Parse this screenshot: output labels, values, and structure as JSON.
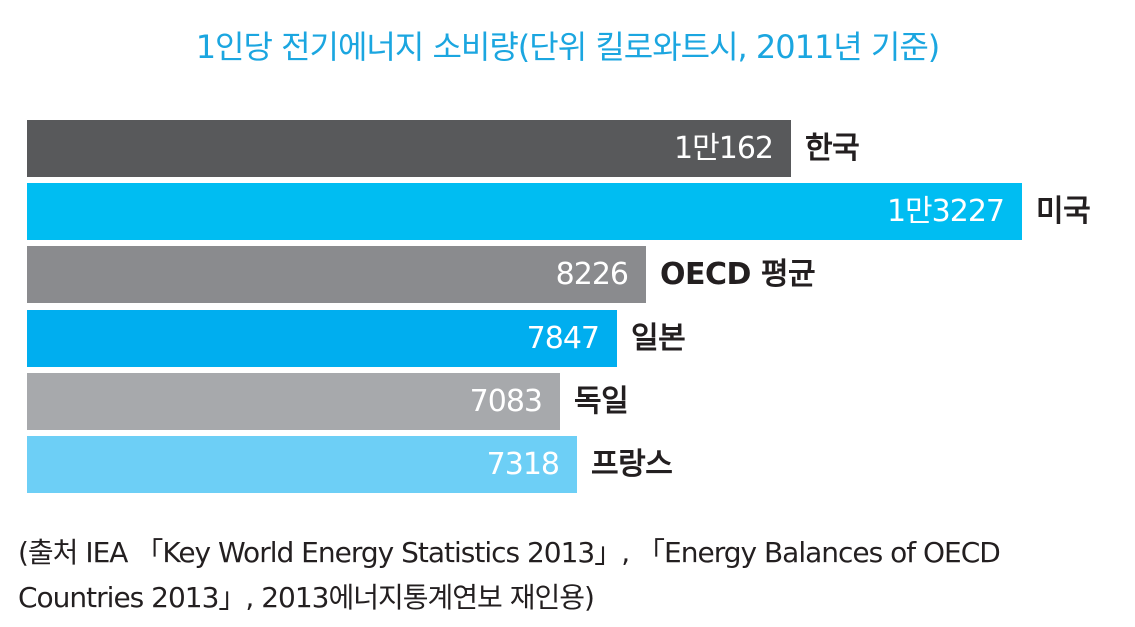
{
  "title": "1인당 전기에너지 소비량(단위 킬로와트시, 2011년 기준)",
  "chart_data": {
    "type": "bar",
    "orientation": "horizontal",
    "title": "1인당 전기에너지 소비량(단위 킬로와트시, 2011년 기준)",
    "xlabel": "",
    "ylabel": "",
    "grid": false,
    "xlim": [
      0,
      13227
    ],
    "bars": [
      {
        "category": "한국",
        "value": 10162,
        "label": "1만162",
        "color": "#58595b"
      },
      {
        "category": "미국",
        "value": 13227,
        "label": "1만3227",
        "color": "#00bdf2"
      },
      {
        "category": "OECD 평균",
        "value": 8226,
        "label": "8226",
        "color": "#8a8b8e"
      },
      {
        "category": "일본",
        "value": 7847,
        "label": "7847",
        "color": "#00aeef"
      },
      {
        "category": "독일",
        "value": 7083,
        "label": "7083",
        "color": "#a7a9ac"
      },
      {
        "category": "프랑스",
        "value": 7318,
        "label": "7318",
        "color": "#6dcff6"
      }
    ]
  },
  "source": {
    "line1": "(출처 IEA 「Key World Energy Statistics 2013」, 「Energy Balances of OECD",
    "line2": "Countries 2013」, 2013에너지통계연보 재인용)"
  }
}
